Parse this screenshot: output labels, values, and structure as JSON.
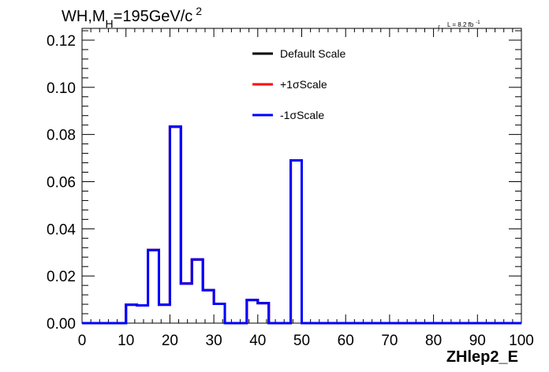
{
  "chart_data": {
    "type": "line",
    "title": {
      "main": "WH,M",
      "subscript": "H",
      "after": "=195GeV/c",
      "superscript": "2"
    },
    "lumi": {
      "integral": "∫",
      "text": "L = 8.2 fb",
      "superscript": "-1"
    },
    "xlabel": "ZHlep2_E",
    "ylabel": "",
    "xlim": [
      0,
      100
    ],
    "ylim": [
      0,
      0.125
    ],
    "x_tick_labels": [
      "0",
      "10",
      "20",
      "30",
      "40",
      "50",
      "60",
      "70",
      "80",
      "90",
      "100"
    ],
    "y_tick_labels": [
      "0.00",
      "0.02",
      "0.04",
      "0.06",
      "0.08",
      "0.10",
      "0.12"
    ],
    "bin_width": 2.5,
    "bin_edges_start": 0,
    "legend_position": "top-center",
    "series": [
      {
        "name": "Default Scale",
        "color": "#000000",
        "values": [
          0,
          0,
          0,
          0,
          0.0078,
          0.0075,
          0.031,
          0.0078,
          0.0833,
          0.0168,
          0.027,
          0.014,
          0.0082,
          0,
          0,
          0.0098,
          0.0085,
          0,
          0,
          0.069,
          0,
          0,
          0,
          0,
          0,
          0,
          0,
          0,
          0,
          0,
          0,
          0,
          0,
          0,
          0,
          0,
          0,
          0,
          0,
          0
        ]
      },
      {
        "name": "+1σScale",
        "color": "#ff0000",
        "values": [
          0,
          0,
          0,
          0,
          0.0078,
          0.0075,
          0.031,
          0.0078,
          0.0833,
          0.0168,
          0.027,
          0.014,
          0.0082,
          0,
          0,
          0.0098,
          0.0085,
          0,
          0,
          0.069,
          0,
          0,
          0,
          0,
          0,
          0,
          0,
          0,
          0,
          0,
          0,
          0,
          0,
          0,
          0,
          0,
          0,
          0,
          0,
          0
        ]
      },
      {
        "name": "-1σScale",
        "color": "#0000ff",
        "values": [
          0,
          0,
          0,
          0,
          0.0078,
          0.0075,
          0.031,
          0.0078,
          0.0833,
          0.0168,
          0.027,
          0.014,
          0.0082,
          0,
          0,
          0.0098,
          0.0085,
          0,
          0,
          0.069,
          0,
          0,
          0,
          0,
          0,
          0,
          0,
          0,
          0,
          0,
          0,
          0,
          0,
          0,
          0,
          0,
          0,
          0,
          0,
          0
        ]
      }
    ]
  }
}
